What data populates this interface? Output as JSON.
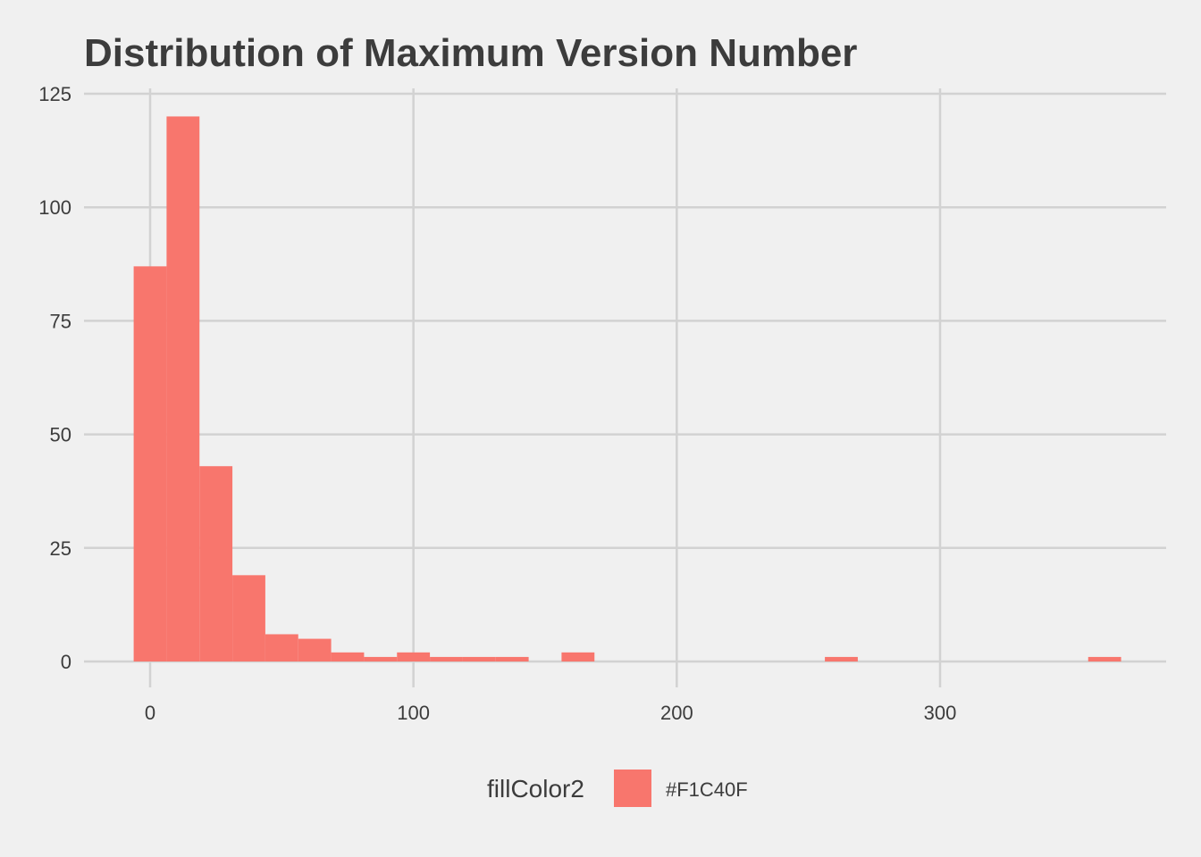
{
  "chart_data": {
    "type": "bar",
    "title": "Distribution of  Maximum Version Number",
    "xlabel": "",
    "ylabel": "",
    "xlim": [
      -25,
      385
    ],
    "ylim": [
      0,
      125
    ],
    "x_ticks": [
      0,
      100,
      200,
      300
    ],
    "y_ticks": [
      0,
      25,
      50,
      75,
      100,
      125
    ],
    "grid": true,
    "legend_position": "bottom",
    "bin_width": 12.5,
    "bins": [
      {
        "x0": -6.25,
        "x1": 6.25,
        "count": 87
      },
      {
        "x0": 6.25,
        "x1": 18.75,
        "count": 120
      },
      {
        "x0": 18.75,
        "x1": 31.25,
        "count": 43
      },
      {
        "x0": 31.25,
        "x1": 43.75,
        "count": 19
      },
      {
        "x0": 43.75,
        "x1": 56.25,
        "count": 6
      },
      {
        "x0": 56.25,
        "x1": 68.75,
        "count": 5
      },
      {
        "x0": 68.75,
        "x1": 81.25,
        "count": 2
      },
      {
        "x0": 81.25,
        "x1": 93.75,
        "count": 1
      },
      {
        "x0": 93.75,
        "x1": 106.25,
        "count": 2
      },
      {
        "x0": 106.25,
        "x1": 118.75,
        "count": 1
      },
      {
        "x0": 118.75,
        "x1": 131.25,
        "count": 1
      },
      {
        "x0": 131.25,
        "x1": 143.75,
        "count": 1
      },
      {
        "x0": 156.25,
        "x1": 168.75,
        "count": 2
      },
      {
        "x0": 256.25,
        "x1": 268.75,
        "count": 1
      },
      {
        "x0": 356.25,
        "x1": 368.75,
        "count": 1
      }
    ],
    "bar_color": "#f8766d",
    "legend": {
      "title": "fillColor2",
      "entries": [
        {
          "label": "#F1C40F",
          "color": "#f8766d"
        }
      ]
    }
  }
}
